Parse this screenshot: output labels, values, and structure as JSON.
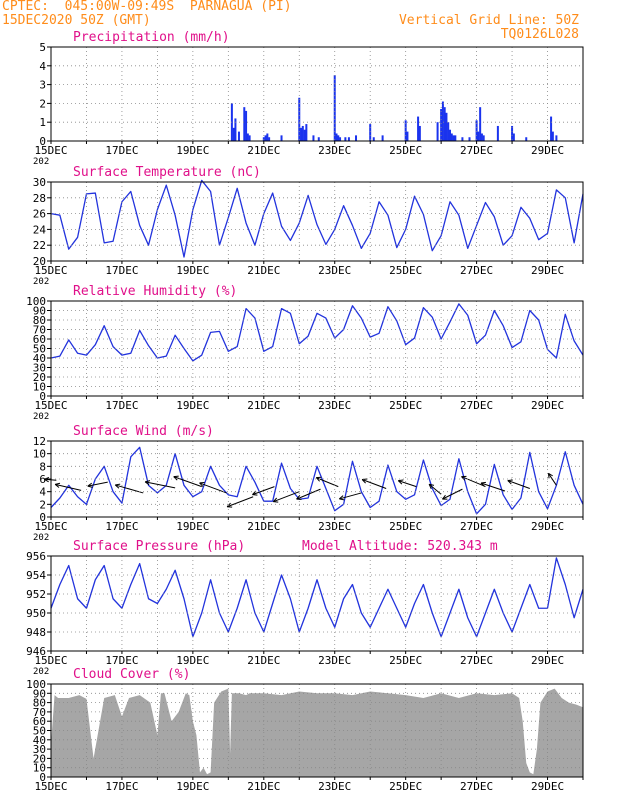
{
  "header": {
    "line1": "CPTEC:  045:00W-09:49S  PARNAGUA (PI)",
    "line2": "15DEC2020 50Z (GMT)",
    "right1": "Vertical Grid Line: 50Z",
    "right2": "TQ0126L028"
  },
  "colors": {
    "header": "#ff8c1a",
    "title": "#e0108a",
    "line": "#2233dd",
    "precip": "#1a33ee",
    "cloud": "#a6a6a6",
    "grid": "#888888",
    "wind_arrow": "#000000"
  },
  "x_ticks": [
    "15DEC",
    "17DEC",
    "19DEC",
    "21DEC",
    "23DEC",
    "25DEC",
    "27DEC",
    "29DEC"
  ],
  "x_tick_stub": "202",
  "altitude_label": "Model Altitude: 520.343 m",
  "chart_data": [
    {
      "type": "bar",
      "title": "Precipitation (mm/h)",
      "ylim": [
        0,
        5
      ],
      "yticks": [
        "0",
        "1",
        "2",
        "3",
        "4",
        "5"
      ],
      "x_days": [
        5.1,
        5.15,
        5.2,
        5.3,
        5.45,
        5.5,
        5.55,
        5.6,
        6.0,
        6.05,
        6.1,
        6.15,
        6.5,
        7.0,
        7.05,
        7.1,
        7.15,
        7.2,
        7.4,
        7.55,
        8.0,
        8.05,
        8.1,
        8.15,
        8.3,
        8.4,
        8.6,
        9.0,
        9.1,
        9.35,
        10.0,
        10.05,
        10.35,
        10.4,
        10.9,
        11.0,
        11.05,
        11.1,
        11.15,
        11.2,
        11.25,
        11.3,
        11.35,
        11.4,
        11.6,
        11.8,
        12.0,
        12.05,
        12.1,
        12.15,
        12.2,
        12.6,
        13.0,
        13.05,
        13.4,
        14.1,
        14.15,
        14.25
      ],
      "values": [
        2.0,
        0.7,
        1.2,
        0.5,
        1.8,
        1.6,
        0.4,
        0.3,
        0.2,
        0.3,
        0.4,
        0.2,
        0.3,
        2.3,
        0.7,
        0.8,
        0.6,
        0.9,
        0.3,
        0.2,
        3.5,
        0.4,
        0.3,
        0.2,
        0.2,
        0.2,
        0.3,
        0.9,
        0.2,
        0.3,
        1.1,
        0.5,
        1.3,
        0.8,
        1.0,
        1.7,
        2.1,
        1.8,
        1.5,
        1.0,
        0.6,
        0.4,
        0.3,
        0.3,
        0.2,
        0.2,
        1.1,
        0.5,
        1.8,
        0.4,
        0.3,
        0.8,
        0.8,
        0.4,
        0.2,
        1.3,
        0.5,
        0.3
      ]
    },
    {
      "type": "line",
      "title": "Surface Temperature (nC)",
      "ylim": [
        20,
        30
      ],
      "yticks": [
        "20",
        "22",
        "24",
        "26",
        "28",
        "30"
      ],
      "x_days": [
        0,
        0.25,
        0.5,
        0.75,
        1,
        1.25,
        1.5,
        1.75,
        2,
        2.25,
        2.5,
        2.75,
        3,
        3.25,
        3.5,
        3.75,
        4,
        4.25,
        4.5,
        4.75,
        5,
        5.25,
        5.5,
        5.75,
        6,
        6.25,
        6.5,
        6.75,
        7,
        7.25,
        7.5,
        7.75,
        8,
        8.25,
        8.5,
        8.75,
        9,
        9.25,
        9.5,
        9.75,
        10,
        10.25,
        10.5,
        10.75,
        11,
        11.25,
        11.5,
        11.75,
        12,
        12.25,
        12.5,
        12.75,
        13,
        13.25,
        13.5,
        13.75,
        14,
        14.25,
        14.5,
        14.75,
        15
      ],
      "values": [
        26,
        25.8,
        21.5,
        23,
        28.5,
        28.6,
        22.3,
        22.5,
        27.5,
        28.8,
        24.5,
        22,
        26.5,
        29.6,
        25.8,
        20.5,
        26.5,
        30.2,
        28.8,
        22,
        25.5,
        29.2,
        24.8,
        22,
        26,
        28.6,
        24.4,
        22.6,
        24.8,
        28.3,
        24.6,
        22.1,
        24,
        27,
        24.5,
        21.6,
        23.5,
        27.5,
        25.8,
        21.7,
        24,
        28.2,
        25.9,
        21.3,
        23.2,
        27.5,
        25.8,
        21.6,
        24.5,
        27.4,
        25.6,
        22,
        23.2,
        26.8,
        25.4,
        22.7,
        23.5,
        29,
        28,
        22.3,
        28.5
      ]
    },
    {
      "type": "line",
      "title": "Relative Humidity (%)",
      "ylim": [
        0,
        100
      ],
      "yticks": [
        "0",
        "10",
        "20",
        "30",
        "40",
        "50",
        "60",
        "70",
        "80",
        "90",
        "100"
      ],
      "x_days": [
        0,
        0.25,
        0.5,
        0.75,
        1,
        1.25,
        1.5,
        1.75,
        2,
        2.25,
        2.5,
        2.75,
        3,
        3.25,
        3.5,
        3.75,
        4,
        4.25,
        4.5,
        4.75,
        5,
        5.25,
        5.5,
        5.75,
        6,
        6.25,
        6.5,
        6.75,
        7,
        7.25,
        7.5,
        7.75,
        8,
        8.25,
        8.5,
        8.75,
        9,
        9.25,
        9.5,
        9.75,
        10,
        10.25,
        10.5,
        10.75,
        11,
        11.25,
        11.5,
        11.75,
        12,
        12.25,
        12.5,
        12.75,
        13,
        13.25,
        13.5,
        13.75,
        14,
        14.25,
        14.5,
        14.75,
        15
      ],
      "values": [
        40,
        42,
        59,
        45,
        43,
        54,
        74,
        52,
        43,
        45,
        69,
        53,
        40,
        42,
        64,
        50,
        37,
        43,
        67,
        68,
        47,
        52,
        92,
        82,
        47,
        52,
        92,
        87,
        55,
        63,
        87,
        82,
        61,
        70,
        95,
        82,
        62,
        66,
        94,
        79,
        54,
        61,
        93,
        83,
        60,
        78,
        97,
        85,
        55,
        64,
        90,
        74,
        51,
        57,
        90,
        80,
        49,
        40,
        86,
        58,
        43
      ]
    },
    {
      "type": "line",
      "title": "Surface Wind (m/s)",
      "ylim": [
        0,
        12
      ],
      "yticks": [
        "0",
        "2",
        "4",
        "6",
        "8",
        "10",
        "12"
      ],
      "x_days": [
        0,
        0.25,
        0.5,
        0.75,
        1,
        1.25,
        1.5,
        1.75,
        2,
        2.25,
        2.5,
        2.75,
        3,
        3.25,
        3.5,
        3.75,
        4,
        4.25,
        4.5,
        4.75,
        5,
        5.25,
        5.5,
        5.75,
        6,
        6.25,
        6.5,
        6.75,
        7,
        7.25,
        7.5,
        7.75,
        8,
        8.25,
        8.5,
        8.75,
        9,
        9.25,
        9.5,
        9.75,
        10,
        10.25,
        10.5,
        10.75,
        11,
        11.25,
        11.5,
        11.75,
        12,
        12.25,
        12.5,
        12.75,
        13,
        13.25,
        13.5,
        13.75,
        14,
        14.25,
        14.5,
        14.75,
        15
      ],
      "values": [
        1.5,
        3,
        5,
        3.2,
        2,
        6,
        8,
        4,
        2.2,
        9.5,
        11,
        5,
        3.8,
        5,
        10,
        5,
        3.2,
        4,
        8,
        5,
        3.5,
        3.2,
        8,
        5.5,
        2.5,
        2.5,
        8.5,
        4.5,
        2.8,
        3,
        8,
        4.5,
        1,
        2,
        8.8,
        4,
        1.5,
        2.5,
        8.2,
        4,
        2.8,
        3.5,
        9,
        4.5,
        1.8,
        2.8,
        9.2,
        4,
        0.5,
        2,
        8.3,
        3.5,
        1.2,
        3,
        10.2,
        4,
        1.3,
        5,
        10.3,
        5,
        2
      ],
      "wind_arrows_x_days": [
        0.15,
        0.85,
        1.6,
        2.6,
        3.5,
        4.25,
        4.95,
        5.7,
        6.3,
        7.0,
        7.6,
        8.1,
        8.75,
        9.45,
        10.3,
        11.0,
        11.6,
        12.25,
        12.8,
        13.5,
        14.25
      ],
      "wind_arrows_y": [
        5.8,
        4.2,
        5.5,
        3.8,
        4.6,
        4.8,
        3.8,
        3.2,
        4.8,
        4.0,
        4.4,
        4.8,
        3.8,
        4.5,
        4.8,
        3.6,
        4.4,
        4.8,
        4.1,
        4.5,
        5.0
      ],
      "wind_arrows_dx": [
        -12,
        -26,
        -20,
        -28,
        -30,
        -28,
        -27,
        -26,
        -22,
        -26,
        -24,
        -22,
        -22,
        -24,
        -18,
        -12,
        -20,
        -24,
        -24,
        -22,
        -8
      ],
      "wind_arrows_dy": [
        -1,
        -6,
        4,
        -8,
        -6,
        -10,
        -10,
        10,
        8,
        10,
        10,
        -9,
        6,
        -9,
        -6,
        -10,
        10,
        -10,
        -8,
        -8,
        -12
      ]
    },
    {
      "type": "line",
      "title": "Surface Pressure (hPa)",
      "ylim": [
        946,
        956
      ],
      "yticks": [
        "946",
        "948",
        "950",
        "952",
        "954",
        "956"
      ],
      "x_days": [
        0,
        0.25,
        0.5,
        0.75,
        1,
        1.25,
        1.5,
        1.75,
        2,
        2.25,
        2.5,
        2.75,
        3,
        3.25,
        3.5,
        3.75,
        4,
        4.25,
        4.5,
        4.75,
        5,
        5.25,
        5.5,
        5.75,
        6,
        6.25,
        6.5,
        6.75,
        7,
        7.25,
        7.5,
        7.75,
        8,
        8.25,
        8.5,
        8.75,
        9,
        9.25,
        9.5,
        9.75,
        10,
        10.25,
        10.5,
        10.75,
        11,
        11.25,
        11.5,
        11.75,
        12,
        12.25,
        12.5,
        12.75,
        13,
        13.25,
        13.5,
        13.75,
        14,
        14.25,
        14.5,
        14.75,
        15
      ],
      "values": [
        950.5,
        953,
        955,
        951.5,
        950.5,
        953.5,
        955,
        951.5,
        950.5,
        953,
        955.2,
        951.5,
        951,
        952.5,
        954.5,
        951.5,
        947.5,
        950,
        953.5,
        950,
        948,
        950.5,
        953.5,
        950,
        948,
        951,
        954,
        951.5,
        948,
        950.5,
        953.5,
        950.5,
        948.5,
        951.5,
        953,
        950,
        948.5,
        950.5,
        952.5,
        950.5,
        948.5,
        951,
        953,
        950,
        947.5,
        950,
        952.5,
        949.5,
        947.5,
        950,
        952.5,
        950,
        948,
        950.5,
        953,
        950.5,
        950.5,
        955.8,
        953,
        949.5,
        952.5
      ]
    },
    {
      "type": "area",
      "title": "Cloud Cover (%)",
      "ylim": [
        0,
        100
      ],
      "yticks": [
        "0",
        "10",
        "20",
        "30",
        "40",
        "50",
        "60",
        "70",
        "80",
        "90",
        "100"
      ],
      "x_days": [
        0,
        0.1,
        0.2,
        0.5,
        0.8,
        1.0,
        1.2,
        1.5,
        1.8,
        2.0,
        2.2,
        2.5,
        2.8,
        3.0,
        3.1,
        3.2,
        3.4,
        3.6,
        3.8,
        3.9,
        4.0,
        4.1,
        4.2,
        4.3,
        4.4,
        4.5,
        4.6,
        4.8,
        5.0,
        5.05,
        5.1,
        5.3,
        5.5,
        5.6,
        6.0,
        6.5,
        7.0,
        7.5,
        8.0,
        8.5,
        9.0,
        9.5,
        10.0,
        10.5,
        11.0,
        11.5,
        12.0,
        12.5,
        13.0,
        13.2,
        13.3,
        13.4,
        13.5,
        13.6,
        13.7,
        13.8,
        14.0,
        14.2,
        14.4,
        14.6,
        14.8,
        15.0
      ],
      "values": [
        35,
        88,
        85,
        85,
        88,
        84,
        20,
        85,
        88,
        65,
        85,
        88,
        80,
        45,
        90,
        90,
        60,
        70,
        90,
        88,
        60,
        45,
        5,
        10,
        3,
        5,
        80,
        92,
        95,
        25,
        90,
        90,
        88,
        90,
        90,
        88,
        92,
        90,
        90,
        88,
        92,
        90,
        88,
        85,
        90,
        85,
        90,
        88,
        90,
        85,
        60,
        15,
        5,
        3,
        30,
        80,
        92,
        95,
        85,
        80,
        78,
        75
      ]
    }
  ]
}
